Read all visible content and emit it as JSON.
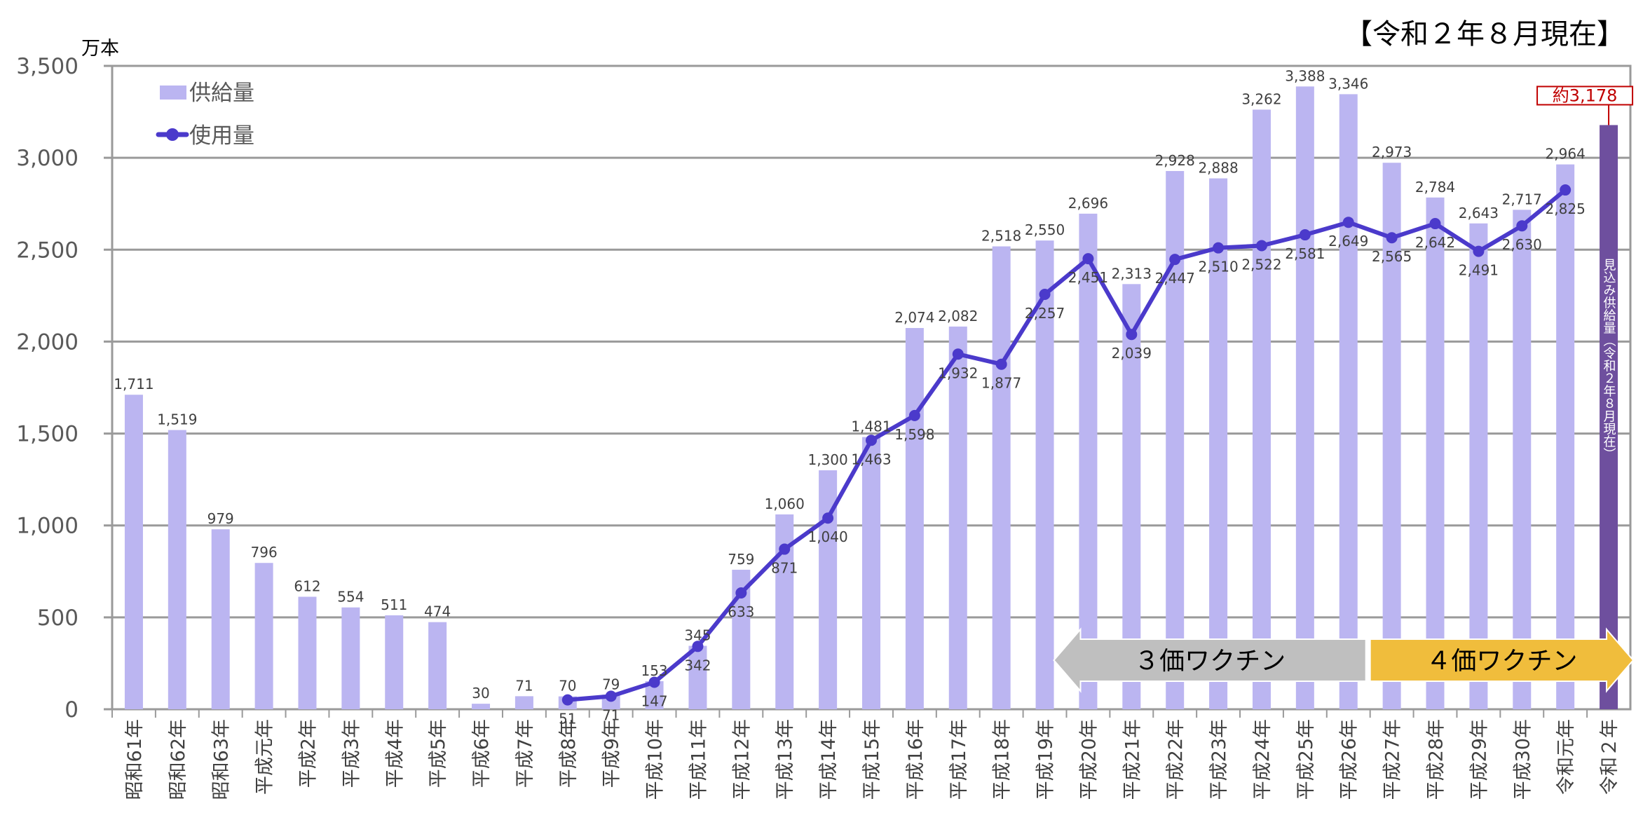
{
  "chart_data": {
    "type": "bar",
    "title": "【令和２年８月現在】",
    "ylabel": "万本",
    "ylim": [
      0,
      3500
    ],
    "yticks": [
      "0",
      "500",
      "1,000",
      "1,500",
      "2,000",
      "2,500",
      "3,000",
      "3,500"
    ],
    "grid": true,
    "legend_position": "top-left",
    "categories": [
      "昭和61年",
      "昭和62年",
      "昭和63年",
      "平成元年",
      "平成2年",
      "平成3年",
      "平成4年",
      "平成5年",
      "平成6年",
      "平成7年",
      "平成8年",
      "平成9年",
      "平成10年",
      "平成11年",
      "平成12年",
      "平成13年",
      "平成14年",
      "平成15年",
      "平成16年",
      "平成17年",
      "平成18年",
      "平成19年",
      "平成20年",
      "平成21年",
      "平成22年",
      "平成23年",
      "平成24年",
      "平成25年",
      "平成26年",
      "平成27年",
      "平成28年",
      "平成29年",
      "平成30年",
      "令和元年",
      "令和２年"
    ],
    "series": [
      {
        "name": "供給量",
        "type": "bar",
        "color": "#bbb5f1",
        "values": [
          1711,
          1519,
          979,
          796,
          612,
          554,
          511,
          474,
          30,
          71,
          70,
          79,
          153,
          345,
          759,
          1060,
          1300,
          1481,
          2074,
          2082,
          2518,
          2550,
          2696,
          2313,
          2928,
          2888,
          3262,
          3388,
          3346,
          2973,
          2784,
          2643,
          2717,
          2964,
          null
        ],
        "labels": [
          "1,711",
          "1,519",
          "979",
          "796",
          "612",
          "554",
          "511",
          "474",
          "30",
          "71",
          "70",
          "79",
          "153",
          "345",
          "759",
          "1,060",
          "1,300",
          "1,481",
          "2,074",
          "2,082",
          "2,518",
          "2,550",
          "2,696",
          "2,313",
          "2,928",
          "2,888",
          "3,262",
          "3,388",
          "3,346",
          "2,973",
          "2,784",
          "2,643",
          "2,717",
          "2,964",
          ""
        ]
      },
      {
        "name": "使用量",
        "type": "line",
        "color": "#4b3acb",
        "values": [
          null,
          null,
          null,
          null,
          null,
          null,
          null,
          null,
          null,
          null,
          51,
          71,
          147,
          342,
          633,
          871,
          1040,
          1463,
          1598,
          1932,
          1877,
          2257,
          2451,
          2039,
          2447,
          2510,
          2522,
          2581,
          2649,
          2565,
          2642,
          2491,
          2630,
          2825,
          null
        ],
        "labels": [
          "",
          "",
          "",
          "",
          "",
          "",
          "",
          "",
          "",
          "",
          "51",
          "71",
          "147",
          "342",
          "633",
          "871",
          "1,040",
          "1,463",
          "1,598",
          "1,932",
          "1,877",
          "2,257",
          "2,451",
          "2,039",
          "2,447",
          "2,510",
          "2,522",
          "2,581",
          "2,649",
          "2,565",
          "2,642",
          "2,491",
          "2,630",
          "2,825",
          ""
        ]
      }
    ],
    "estimate": {
      "category": "令和２年",
      "value": 3178,
      "label": "約3,178",
      "bar_text": "見込み供給量（令和２年８月現在）",
      "color": "#6e4f9e"
    },
    "annotations": [
      {
        "text": "３価ワクチン",
        "from": "平成20年",
        "to": "平成26年",
        "direction": "left",
        "color": "#bfbfbf"
      },
      {
        "text": "４価ワクチン",
        "from": "平成27年",
        "to": "令和２年",
        "direction": "right",
        "color": "#f0bd3c"
      }
    ]
  }
}
